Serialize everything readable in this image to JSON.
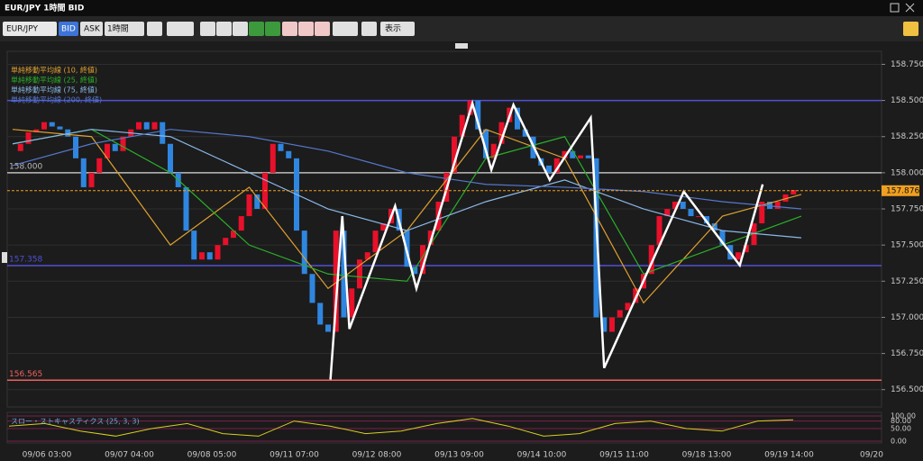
{
  "window_title": "EUR/JPY 1時間 BID",
  "toolbar": {
    "symbol": "EUR/JPY",
    "bid": "BID",
    "ask": "ASK",
    "timeframe": "1時間",
    "view": "表示"
  },
  "chart_data": {
    "type": "candlestick",
    "up_color": "#e8102a",
    "down_color": "#2f86e0",
    "ylim": [
      156.38,
      158.84
    ],
    "yticks": [
      {
        "value": 158.75,
        "label": "158.750"
      },
      {
        "value": 158.5,
        "label": "158.500"
      },
      {
        "value": 158.25,
        "label": "158.250"
      },
      {
        "value": 158,
        "label": "158.000"
      },
      {
        "value": 157.75,
        "label": "157.750"
      },
      {
        "value": 157.5,
        "label": "157.500"
      },
      {
        "value": 157.25,
        "label": "157.250"
      },
      {
        "value": 157,
        "label": "157.000"
      },
      {
        "value": 156.75,
        "label": "156.750"
      },
      {
        "value": 156.5,
        "label": "156.500"
      }
    ],
    "categories": [
      "09/06 03:00",
      "09/07 04:00",
      "09/08 05:00",
      "09/11 07:00",
      "09/12 08:00",
      "09/13 09:00",
      "09/14 10:00",
      "09/15 11:00",
      "09/18 13:00",
      "09/19 14:00",
      "09/20"
    ],
    "close": [
      158.15,
      158.2,
      158.28,
      158.3,
      158.35,
      158.32,
      158.3,
      158.25,
      158.1,
      157.9,
      158.0,
      158.1,
      158.2,
      158.15,
      158.25,
      158.3,
      158.35,
      158.3,
      158.35,
      158.2,
      158.0,
      157.9,
      157.6,
      157.4,
      157.45,
      157.4,
      157.5,
      157.55,
      157.6,
      157.7,
      157.85,
      157.75,
      158.0,
      158.2,
      158.15,
      158.1,
      157.6,
      157.3,
      157.1,
      156.95,
      156.9,
      157.6,
      157.0,
      157.2,
      157.4,
      157.45,
      157.6,
      157.65,
      157.75,
      157.6,
      157.35,
      157.3,
      157.5,
      157.6,
      157.8,
      158.0,
      158.25,
      158.4,
      158.5,
      158.3,
      158.1,
      158.2,
      158.35,
      158.45,
      158.3,
      158.25,
      158.1,
      158.05,
      158.0,
      158.1,
      158.15,
      158.1,
      158.12,
      158.1,
      157.0,
      156.9,
      157.0,
      157.05,
      157.1,
      157.2,
      157.3,
      157.5,
      157.7,
      157.75,
      157.8,
      157.75,
      157.7,
      157.7,
      157.65,
      157.6,
      157.5,
      157.4,
      157.45,
      157.5,
      157.65,
      157.8,
      157.75,
      157.8,
      157.85,
      157.88
    ],
    "series": [
      {
        "name": "単純移動平均線 (10, 終値)",
        "color": "#e0a030",
        "x": [
          0,
          10,
          20,
          30,
          40,
          50,
          60,
          70,
          80,
          90,
          100
        ],
        "values": [
          158.3,
          158.25,
          157.5,
          157.9,
          157.2,
          157.6,
          158.3,
          158.1,
          157.1,
          157.7,
          157.85
        ]
      },
      {
        "name": "単純移動平均線 (25, 終値)",
        "color": "#2ab02a",
        "x": [
          0,
          10,
          20,
          30,
          40,
          50,
          60,
          70,
          80,
          90,
          100
        ],
        "values": [
          158.2,
          158.3,
          158.0,
          157.5,
          157.3,
          157.25,
          158.1,
          158.25,
          157.3,
          157.5,
          157.7
        ]
      },
      {
        "name": "単純移動平均線 (75, 終値)",
        "color": "#8ab8e8",
        "x": [
          0,
          10,
          20,
          30,
          40,
          50,
          60,
          70,
          80,
          90,
          100
        ],
        "values": [
          158.2,
          158.3,
          158.25,
          158.0,
          157.75,
          157.6,
          157.8,
          157.95,
          157.75,
          157.6,
          157.55
        ]
      },
      {
        "name": "単純移動平均線 (200, 終値)",
        "color": "#5577cc",
        "x": [
          0,
          10,
          20,
          30,
          40,
          50,
          60,
          70,
          80,
          90,
          100
        ],
        "values": [
          158.05,
          158.2,
          158.3,
          158.25,
          158.15,
          158.0,
          157.92,
          157.9,
          157.87,
          157.8,
          157.75
        ]
      }
    ],
    "zigzag": {
      "color": "#ffffff",
      "x": [
        40.3,
        41.8,
        42.7,
        48.5,
        51.2,
        58.3,
        60.7,
        63.5,
        68.1,
        73.3,
        75.0,
        85.1,
        92.2,
        95.1
      ],
      "values": [
        156.57,
        157.7,
        156.92,
        157.77,
        157.2,
        158.48,
        158.02,
        158.47,
        157.95,
        158.38,
        156.65,
        157.87,
        157.36,
        157.92
      ]
    },
    "levels": [
      {
        "value": 158.5,
        "color": "#5050d8"
      },
      {
        "value": 158.0,
        "label": "158.000",
        "color": "#bbbbbb"
      },
      {
        "value": 157.358,
        "label": "157.358",
        "color": "#5050d8"
      },
      {
        "value": 156.565,
        "label": "156.565",
        "color": "#f06060"
      }
    ],
    "current": {
      "value": 157.876,
      "label": "157.876",
      "color": "#f0a020"
    },
    "stochastic": {
      "title": "スロー・ストキャスティクス (25, 3, 3)",
      "color": "#d8d020",
      "ylim": [
        0,
        100
      ],
      "yticks": [
        {
          "value": 100,
          "label": "100.00"
        },
        {
          "value": 80,
          "label": "80.00"
        },
        {
          "value": 50,
          "label": "50.00"
        },
        {
          "value": 0,
          "label": "0.00"
        }
      ],
      "values": [
        60,
        70,
        40,
        20,
        50,
        70,
        30,
        20,
        80,
        60,
        30,
        40,
        70,
        90,
        60,
        20,
        30,
        70,
        80,
        50,
        40,
        80,
        85
      ]
    }
  }
}
